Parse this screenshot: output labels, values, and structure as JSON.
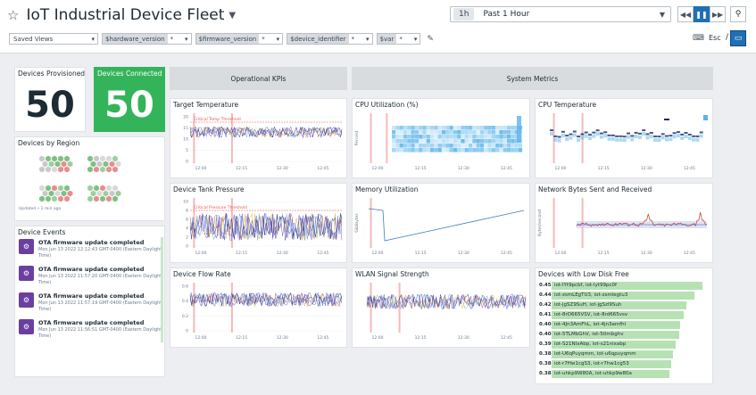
{
  "header": {
    "title": "IoT Industrial Device Fleet",
    "time_chip": "1h",
    "time_label": "Past 1 Hour",
    "esc_label": "Esc",
    "slash": "/"
  },
  "filters": {
    "saved_views": "Saved Views",
    "vars": [
      {
        "name": "$hardware_version",
        "value": "*"
      },
      {
        "name": "$firmware_version",
        "value": "*"
      },
      {
        "name": "$device_identifier",
        "value": "*"
      },
      {
        "name": "$var",
        "value": "*"
      }
    ]
  },
  "groups": {
    "kpi": "Operational KPIs",
    "system": "System Metrics"
  },
  "kpis": {
    "provisioned_label": "Devices Provisioned",
    "provisioned_value": "50",
    "connected_label": "Devices Connected",
    "connected_value": "50",
    "region_label": "Devices by Region",
    "region_updated": "Updated • 1 min ago"
  },
  "events": {
    "title": "Device Events",
    "items": [
      {
        "title": "OTA firmware update completed",
        "time": "Mon Jun 13 2022 12:12:43 GMT-0400 (Eastern Daylight Time)"
      },
      {
        "title": "OTA firmware update completed",
        "time": "Mon Jun 13 2022 11:57:20 GMT-0400 (Eastern Daylight Time)"
      },
      {
        "title": "OTA firmware update completed",
        "time": "Mon Jun 13 2022 11:57:19 GMT-0400 (Eastern Daylight Time)"
      },
      {
        "title": "OTA firmware update completed",
        "time": "Mon Jun 13 2022 11:56:51 GMT-0400 (Eastern Daylight Time)"
      }
    ]
  },
  "panels": {
    "target_temp": {
      "title": "Target Temperature",
      "threshold": "Critical Temp Threshold",
      "yticks": [
        "20",
        "15",
        "10",
        "5",
        "0"
      ]
    },
    "tank_pressure": {
      "title": "Device Tank Pressure",
      "threshold": "Critical Pressure Threshold",
      "yticks": [
        "10",
        "8",
        "6",
        "4",
        "2",
        "0"
      ]
    },
    "flow_rate": {
      "title": "Device Flow Rate",
      "yticks": [
        "0.6",
        "0.4",
        "0.2",
        "0"
      ]
    },
    "cpu_util": {
      "title": "CPU Utilization (%)",
      "ylabel": "Percent"
    },
    "memory": {
      "title": "Memory Utilization",
      "ylabel": "Gibibytes"
    },
    "wlan": {
      "title": "WLAN Signal Strength"
    },
    "cpu_temp": {
      "title": "CPU Temperature"
    },
    "network": {
      "title": "Network Bytes Sent and Received",
      "ylabel": "Bytes/second"
    },
    "disk": {
      "title": "Devices with Low Disk Free"
    }
  },
  "xticks": [
    "12:00",
    "12:15",
    "12:30",
    "12:45"
  ],
  "disk_rows": [
    {
      "value": "0.45",
      "label": "iot-lYt9pcbf, iot-lyt99pc0f",
      "pct": 0.98
    },
    {
      "value": "0.44",
      "label": "iot-zsmLEgTU3, iot-zsmlegtu3",
      "pct": 0.93
    },
    {
      "value": "0.42",
      "label": "iot-jgSZ9SuH, iot-jgSzl9Suh",
      "pct": 0.88
    },
    {
      "value": "0.41",
      "label": "iot-8rD665VSV, iot-8rd665vsv",
      "pct": 0.86
    },
    {
      "value": "0.40",
      "label": "iot-4Jn3AmFhL, iot-4jn3amfhl",
      "pct": 0.84
    },
    {
      "value": "0.40",
      "label": "iot-5TLMbGhV, iot-5tlmbghv",
      "pct": 0.83
    },
    {
      "value": "0.39",
      "label": "iot-S21NIxAbp, iot-s21nixabp",
      "pct": 0.81
    },
    {
      "value": "0.38",
      "label": "iot-U6qPuyqmm, iot-u6qpuyqmm",
      "pct": 0.79
    },
    {
      "value": "0.38",
      "label": "iot-r7Hw1cgS3, iot-r7hw1cg53",
      "pct": 0.78
    },
    {
      "value": "0.38",
      "label": "iot-uhkp9W80A, iot-uhkp9w80a",
      "pct": 0.77
    }
  ],
  "colors": {
    "accent": "#1f6fb5",
    "green": "#34b45a",
    "threshold": "#f4a7a7",
    "event_icon": "#6b3fa0"
  }
}
